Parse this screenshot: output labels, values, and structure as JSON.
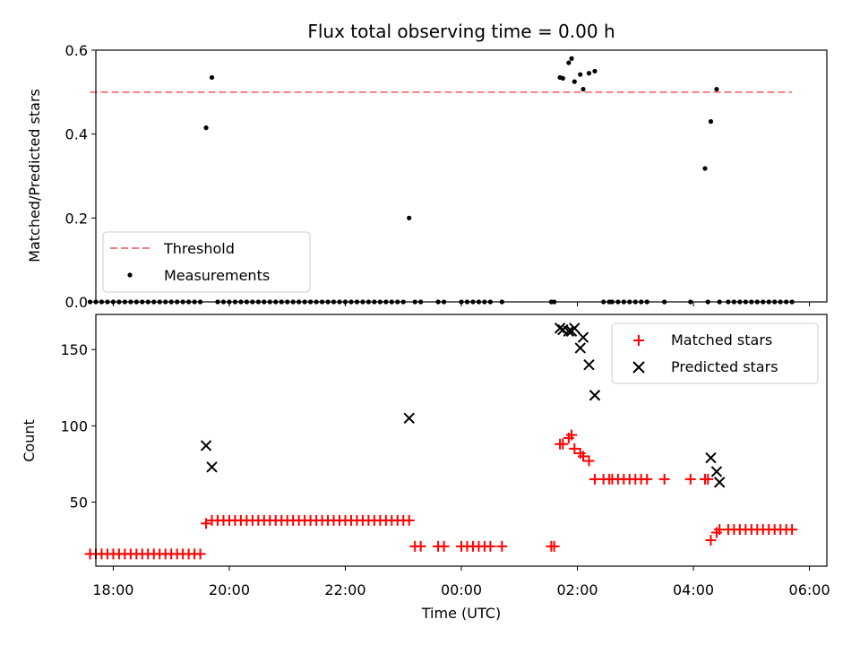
{
  "colors": {
    "threshold": "#f08080",
    "measurement": "#000000",
    "matched": "#ff0000",
    "predicted": "#000000",
    "legend_border": "#cccccc"
  },
  "chart_data": [
    {
      "type": "scatter",
      "title": "Flux total observing time = 0.00 h",
      "xlabel": "",
      "ylabel": "Matched/Predicted stars",
      "xlim": [
        -6.3,
        6.3
      ],
      "ylim": [
        0,
        0.6
      ],
      "yticks": [
        0.0,
        0.2,
        0.4,
        0.6
      ],
      "ytick_labels": [
        "0.0",
        "0.2",
        "0.4",
        "0.6"
      ],
      "legend_position": "lower left",
      "series": [
        {
          "name": "Threshold",
          "kind": "hline",
          "y": 0.5,
          "x_range": [
            -6.4,
            5.7
          ]
        },
        {
          "name": "Measurements",
          "kind": "points",
          "points": [
            [
              -6.4,
              0
            ],
            [
              -6.3,
              0
            ],
            [
              -6.2,
              0
            ],
            [
              -6.1,
              0
            ],
            [
              -6.0,
              0
            ],
            [
              -5.9,
              0
            ],
            [
              -5.8,
              0
            ],
            [
              -5.7,
              0
            ],
            [
              -5.6,
              0
            ],
            [
              -5.5,
              0
            ],
            [
              -5.4,
              0
            ],
            [
              -5.3,
              0
            ],
            [
              -5.2,
              0
            ],
            [
              -5.1,
              0
            ],
            [
              -5.0,
              0
            ],
            [
              -4.9,
              0
            ],
            [
              -4.8,
              0
            ],
            [
              -4.7,
              0
            ],
            [
              -4.6,
              0
            ],
            [
              -4.5,
              0
            ],
            [
              -4.4,
              0.415
            ],
            [
              -4.3,
              0.535
            ],
            [
              -4.2,
              0
            ],
            [
              -4.1,
              0
            ],
            [
              -4.0,
              0
            ],
            [
              -3.9,
              0
            ],
            [
              -3.8,
              0
            ],
            [
              -3.7,
              0
            ],
            [
              -3.6,
              0
            ],
            [
              -3.5,
              0
            ],
            [
              -3.4,
              0
            ],
            [
              -3.3,
              0
            ],
            [
              -3.2,
              0
            ],
            [
              -3.1,
              0
            ],
            [
              -3.0,
              0
            ],
            [
              -2.9,
              0
            ],
            [
              -2.8,
              0
            ],
            [
              -2.7,
              0
            ],
            [
              -2.6,
              0
            ],
            [
              -2.5,
              0
            ],
            [
              -2.4,
              0
            ],
            [
              -2.3,
              0
            ],
            [
              -2.2,
              0
            ],
            [
              -2.1,
              0
            ],
            [
              -2.0,
              0
            ],
            [
              -1.9,
              0
            ],
            [
              -1.8,
              0
            ],
            [
              -1.7,
              0
            ],
            [
              -1.6,
              0
            ],
            [
              -1.5,
              0
            ],
            [
              -1.4,
              0
            ],
            [
              -1.3,
              0
            ],
            [
              -1.2,
              0
            ],
            [
              -1.1,
              0
            ],
            [
              -1.0,
              0
            ],
            [
              -0.9,
              0.2
            ],
            [
              -0.8,
              0
            ],
            [
              -0.7,
              0
            ],
            [
              -0.4,
              0
            ],
            [
              -0.3,
              0
            ],
            [
              0.0,
              0
            ],
            [
              0.1,
              0
            ],
            [
              0.2,
              0
            ],
            [
              0.3,
              0
            ],
            [
              0.4,
              0
            ],
            [
              0.5,
              0
            ],
            [
              0.7,
              0
            ],
            [
              1.55,
              0
            ],
            [
              1.6,
              0
            ],
            [
              1.7,
              0.535
            ],
            [
              1.75,
              0.533
            ],
            [
              1.85,
              0.57
            ],
            [
              1.9,
              0.58
            ],
            [
              1.95,
              0.525
            ],
            [
              2.05,
              0.542
            ],
            [
              2.1,
              0.507
            ],
            [
              2.2,
              0.545
            ],
            [
              2.3,
              0.55
            ],
            [
              2.45,
              0
            ],
            [
              2.55,
              0
            ],
            [
              2.6,
              0
            ],
            [
              2.7,
              0
            ],
            [
              2.8,
              0
            ],
            [
              2.9,
              0
            ],
            [
              3.0,
              0
            ],
            [
              3.1,
              0
            ],
            [
              3.2,
              0
            ],
            [
              3.5,
              0
            ],
            [
              3.95,
              0
            ],
            [
              4.2,
              0.318
            ],
            [
              4.25,
              0
            ],
            [
              4.3,
              0.43
            ],
            [
              4.4,
              0.507
            ],
            [
              4.45,
              0
            ],
            [
              4.6,
              0
            ],
            [
              4.7,
              0
            ],
            [
              4.8,
              0
            ],
            [
              4.9,
              0
            ],
            [
              5.0,
              0
            ],
            [
              5.1,
              0
            ],
            [
              5.2,
              0
            ],
            [
              5.3,
              0
            ],
            [
              5.4,
              0
            ],
            [
              5.5,
              0
            ],
            [
              5.6,
              0
            ],
            [
              5.7,
              0
            ]
          ]
        }
      ]
    },
    {
      "type": "scatter",
      "title": "",
      "xlabel": "Time (UTC)",
      "ylabel": "Count",
      "x_unit": "hours relative to 00:00 UTC",
      "xlim": [
        -6.3,
        6.3
      ],
      "ylim": [
        8,
        173
      ],
      "yticks": [
        50,
        100,
        150
      ],
      "ytick_labels": [
        "50",
        "100",
        "150"
      ],
      "xticks": [
        -6,
        -4,
        -2,
        0,
        2,
        4,
        6
      ],
      "xtick_labels": [
        "18:00",
        "20:00",
        "22:00",
        "00:00",
        "02:00",
        "04:00",
        "06:00"
      ],
      "legend_position": "upper right",
      "series": [
        {
          "name": "Matched stars",
          "marker": "+",
          "points": [
            [
              -6.4,
              16
            ],
            [
              -6.3,
              16
            ],
            [
              -6.2,
              16
            ],
            [
              -6.1,
              16
            ],
            [
              -6.0,
              16
            ],
            [
              -5.9,
              16
            ],
            [
              -5.8,
              16
            ],
            [
              -5.7,
              16
            ],
            [
              -5.6,
              16
            ],
            [
              -5.5,
              16
            ],
            [
              -5.4,
              16
            ],
            [
              -5.3,
              16
            ],
            [
              -5.2,
              16
            ],
            [
              -5.1,
              16
            ],
            [
              -5.0,
              16
            ],
            [
              -4.9,
              16
            ],
            [
              -4.8,
              16
            ],
            [
              -4.7,
              16
            ],
            [
              -4.6,
              16
            ],
            [
              -4.5,
              16
            ],
            [
              -4.4,
              36
            ],
            [
              -4.3,
              38
            ],
            [
              -4.2,
              38
            ],
            [
              -4.1,
              38
            ],
            [
              -4.0,
              38
            ],
            [
              -3.9,
              38
            ],
            [
              -3.8,
              38
            ],
            [
              -3.7,
              38
            ],
            [
              -3.6,
              38
            ],
            [
              -3.5,
              38
            ],
            [
              -3.4,
              38
            ],
            [
              -3.3,
              38
            ],
            [
              -3.2,
              38
            ],
            [
              -3.1,
              38
            ],
            [
              -3.0,
              38
            ],
            [
              -2.9,
              38
            ],
            [
              -2.8,
              38
            ],
            [
              -2.7,
              38
            ],
            [
              -2.6,
              38
            ],
            [
              -2.5,
              38
            ],
            [
              -2.4,
              38
            ],
            [
              -2.3,
              38
            ],
            [
              -2.2,
              38
            ],
            [
              -2.1,
              38
            ],
            [
              -2.0,
              38
            ],
            [
              -1.9,
              38
            ],
            [
              -1.8,
              38
            ],
            [
              -1.7,
              38
            ],
            [
              -1.6,
              38
            ],
            [
              -1.5,
              38
            ],
            [
              -1.4,
              38
            ],
            [
              -1.3,
              38
            ],
            [
              -1.2,
              38
            ],
            [
              -1.1,
              38
            ],
            [
              -1.0,
              38
            ],
            [
              -0.9,
              38
            ],
            [
              -0.8,
              21
            ],
            [
              -0.7,
              21
            ],
            [
              -0.4,
              21
            ],
            [
              -0.3,
              21
            ],
            [
              0.0,
              21
            ],
            [
              0.1,
              21
            ],
            [
              0.2,
              21
            ],
            [
              0.3,
              21
            ],
            [
              0.4,
              21
            ],
            [
              0.5,
              21
            ],
            [
              0.7,
              21
            ],
            [
              1.55,
              21
            ],
            [
              1.6,
              21
            ],
            [
              1.7,
              88
            ],
            [
              1.75,
              88
            ],
            [
              1.85,
              92
            ],
            [
              1.9,
              94
            ],
            [
              1.95,
              85
            ],
            [
              2.05,
              82
            ],
            [
              2.1,
              80
            ],
            [
              2.2,
              77
            ],
            [
              2.3,
              65
            ],
            [
              2.45,
              65
            ],
            [
              2.55,
              65
            ],
            [
              2.6,
              65
            ],
            [
              2.7,
              65
            ],
            [
              2.8,
              65
            ],
            [
              2.9,
              65
            ],
            [
              3.0,
              65
            ],
            [
              3.1,
              65
            ],
            [
              3.2,
              65
            ],
            [
              3.5,
              65
            ],
            [
              3.95,
              65
            ],
            [
              4.2,
              65
            ],
            [
              4.25,
              65
            ],
            [
              4.3,
              25
            ],
            [
              4.4,
              30
            ],
            [
              4.45,
              32
            ],
            [
              4.6,
              32
            ],
            [
              4.7,
              32
            ],
            [
              4.8,
              32
            ],
            [
              4.9,
              32
            ],
            [
              5.0,
              32
            ],
            [
              5.1,
              32
            ],
            [
              5.2,
              32
            ],
            [
              5.3,
              32
            ],
            [
              5.4,
              32
            ],
            [
              5.5,
              32
            ],
            [
              5.6,
              32
            ],
            [
              5.7,
              32
            ]
          ]
        },
        {
          "name": "Predicted stars",
          "marker": "x",
          "points": [
            [
              -4.4,
              87
            ],
            [
              -4.3,
              73
            ],
            [
              -0.9,
              105
            ],
            [
              1.7,
              164
            ],
            [
              1.75,
              163
            ],
            [
              1.85,
              162
            ],
            [
              1.9,
              162
            ],
            [
              1.95,
              164
            ],
            [
              2.05,
              151
            ],
            [
              2.1,
              158
            ],
            [
              2.2,
              140
            ],
            [
              2.3,
              120
            ],
            [
              4.3,
              79
            ],
            [
              4.4,
              70
            ],
            [
              4.45,
              63
            ]
          ]
        }
      ]
    }
  ]
}
